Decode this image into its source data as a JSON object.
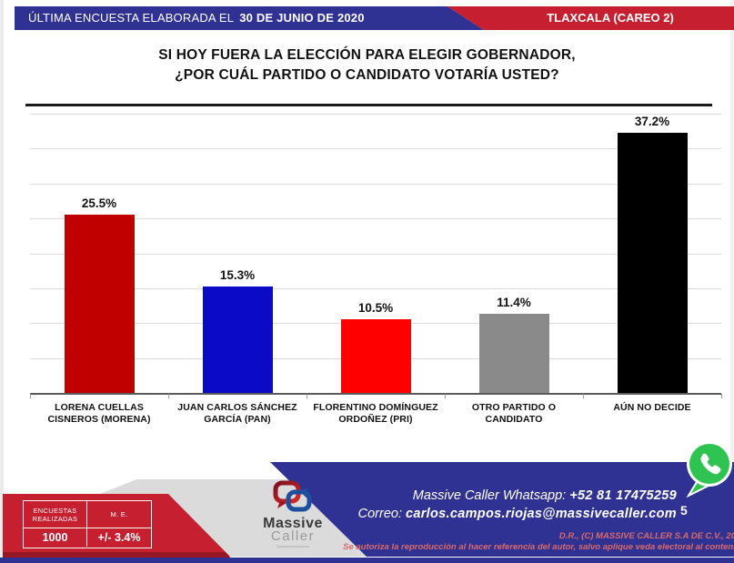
{
  "header": {
    "left_label": "ÚLTIMA ENCUESTA ELABORADA EL",
    "left_date": "30 DE JUNIO DE 2020",
    "right_label": "TLAXCALA (CAREO 2)"
  },
  "title": {
    "line1": "SI HOY FUERA LA ELECCIÓN PARA ELEGIR GOBERNADOR,",
    "line2": "¿POR CUÁL PARTIDO O CANDIDATO VOTARÍA USTED?"
  },
  "chart_data": {
    "type": "bar",
    "title": "SI HOY FUERA LA ELECCIÓN PARA ELEGIR GOBERNADOR, ¿POR CUÁL PARTIDO O CANDIDATO VOTARÍA USTED?",
    "categories": [
      "LORENA CUELLAS CISNEROS (MORENA)",
      "JUAN CARLOS SÁNCHEZ GARCÍA (PAN)",
      "FLORENTINO DOMÍNGUEZ ORDOÑEZ (PRI)",
      "OTRO PARTIDO O CANDIDATO",
      "AÚN NO DECIDE"
    ],
    "values": [
      25.5,
      15.3,
      10.5,
      11.4,
      37.2
    ],
    "value_labels": [
      "25.5%",
      "15.3%",
      "10.5%",
      "11.4%",
      "37.2%"
    ],
    "bar_colors": [
      "#C00000",
      "#0B0BC7",
      "#FF0000",
      "#8A8A8A",
      "#000000"
    ],
    "xlabel": "",
    "ylabel": "",
    "ylim": [
      0,
      40
    ],
    "gridline_step": 5,
    "grid": true,
    "legend_position": "none",
    "y_tick_labels_visible": false
  },
  "footer": {
    "stats_table": {
      "col1_header_line1": "ENCUESTAS",
      "col1_header_line2": "REALIZADAS",
      "col2_header": "M. E.",
      "col1_value": "1000",
      "col2_value": "+/- 3.4%"
    },
    "logo": {
      "name_top": "Massive",
      "name_bottom": "Caller"
    },
    "contact": {
      "whatsapp_label": "Massive Caller Whatsapp:",
      "whatsapp_number": "+52 81 17475259",
      "email_label": "Correo:",
      "email": "carlos.campos.riojas@massivecaller.com",
      "page_number": "5"
    },
    "legal": {
      "line1": "D.R., (C) MASSIVE CALLER S.A DE C.V., 20",
      "line2": "Se autoriza la reproducción al hacer referencia del autor, salvo aplique veda electoral al conteni"
    }
  },
  "icons": {
    "whatsapp": "whatsapp-icon",
    "logo_mark": "massive-caller-logo-icon"
  },
  "colors": {
    "brand-blue": "#2F3193",
    "brand-red": "#C51F30",
    "banner-red": "#C51F30",
    "banner-red-shadow": "#951824",
    "gray-band": "#DBDBDB",
    "grid-line": "#DCDCDC",
    "axis-line": "#595959",
    "legal-text": "#D96A6A",
    "whatsapp-green": "#2FC351",
    "logo-dark": "#3A3A3A",
    "logo-light": "#9B9B9B"
  }
}
